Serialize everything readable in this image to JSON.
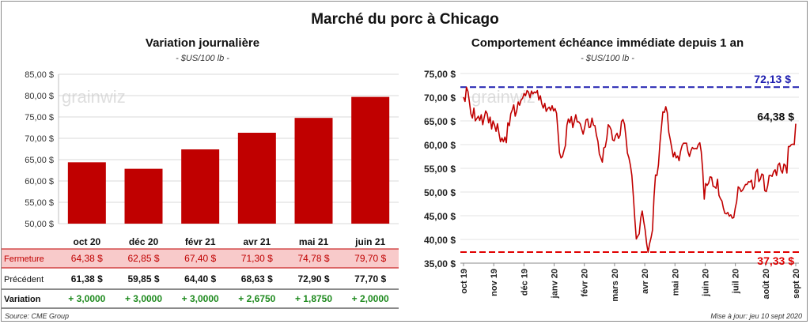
{
  "title": "Marché du porc à Chicago",
  "left": {
    "title": "Variation journalière",
    "subtitle": "- $US/100 lb -",
    "watermark": "grainwiz",
    "chart_data": {
      "type": "bar",
      "categories": [
        "oct 20",
        "déc 20",
        "févr 21",
        "avr 21",
        "mai 21",
        "juin 21"
      ],
      "values": [
        64.38,
        62.85,
        67.4,
        71.3,
        74.78,
        79.7
      ],
      "ylim": [
        50,
        85
      ],
      "yticks": [
        "50,00 $",
        "55,00 $",
        "60,00 $",
        "65,00 $",
        "70,00 $",
        "75,00 $",
        "80,00 $",
        "85,00 $"
      ],
      "bar_color": "#c00000",
      "grid": true
    },
    "table": {
      "rows": [
        {
          "label": "Fermeture",
          "values": [
            "64,38  $",
            "62,85  $",
            "67,40  $",
            "71,30  $",
            "74,78  $",
            "79,70  $"
          ],
          "color": "#c00000",
          "bg": "#f8caca"
        },
        {
          "label": "Précédent",
          "values": [
            "61,38  $",
            "59,85  $",
            "64,40  $",
            "68,63  $",
            "72,90  $",
            "77,70  $"
          ],
          "color": "#111111",
          "bg": "#ffffff"
        },
        {
          "label": "Variation",
          "values": [
            "+ 3,0000",
            "+ 3,0000",
            "+ 3,0000",
            "+ 2,6750",
            "+ 1,8750",
            "+ 2,0000"
          ],
          "color": "#1e8a1e",
          "bg": "#ffffff"
        }
      ]
    }
  },
  "right": {
    "title": "Comportement  échéance immédiate depuis 1 an",
    "subtitle": "- $US/100 lb -",
    "watermark": "grainwiz",
    "chart_data": {
      "type": "line",
      "ylim": [
        35,
        75
      ],
      "yticks": [
        "35,00 $",
        "40,00 $",
        "45,00 $",
        "50,00 $",
        "55,00 $",
        "60,00 $",
        "65,00 $",
        "70,00 $",
        "75,00 $"
      ],
      "xticks": [
        "oct 19",
        "nov 19",
        "déc 19",
        "janv 20",
        "févr 20",
        "mars 20",
        "avr 20",
        "mai 20",
        "juin 20",
        "juil 20",
        "août 20",
        "sept 20"
      ],
      "series_color": "#c00000",
      "max_label": "72,13 $",
      "max_value": 72.13,
      "max_color": "#1f1fb0",
      "min_label": "37,33 $",
      "min_value": 37.33,
      "min_color": "#e00000",
      "last_label": "64,38 $",
      "last_value": 64.38,
      "points": [
        [
          0,
          70.0
        ],
        [
          1,
          69.1
        ],
        [
          2,
          72.1
        ],
        [
          3,
          71.2
        ],
        [
          4,
          68.9
        ],
        [
          5,
          66.5
        ],
        [
          6,
          65.6
        ],
        [
          7,
          67.7
        ],
        [
          8,
          65.0
        ],
        [
          9,
          65.5
        ],
        [
          10,
          66.0
        ],
        [
          11,
          65.1
        ],
        [
          12,
          66.3
        ],
        [
          13,
          64.2
        ],
        [
          14,
          65.7
        ],
        [
          15,
          67.1
        ],
        [
          16,
          66.5
        ],
        [
          17,
          64.6
        ],
        [
          18,
          65.8
        ],
        [
          19,
          63.3
        ],
        [
          20,
          65.0
        ],
        [
          21,
          64.1
        ],
        [
          22,
          62.8
        ],
        [
          23,
          64.4
        ],
        [
          24,
          62.4
        ],
        [
          25,
          60.6
        ],
        [
          26,
          61.4
        ],
        [
          27,
          60.6
        ],
        [
          28,
          61.6
        ],
        [
          29,
          60.4
        ],
        [
          30,
          64.6
        ],
        [
          31,
          64.0
        ],
        [
          32,
          66.5
        ],
        [
          33,
          67.3
        ],
        [
          34,
          68.4
        ],
        [
          35,
          66.0
        ],
        [
          36,
          67.1
        ],
        [
          37,
          69.0
        ],
        [
          38,
          68.3
        ],
        [
          39,
          69.4
        ],
        [
          40,
          69.8
        ],
        [
          41,
          70.8
        ],
        [
          42,
          70.3
        ],
        [
          43,
          71.4
        ],
        [
          44,
          71.1
        ],
        [
          45,
          69.9
        ],
        [
          46,
          71.3
        ],
        [
          47,
          70.7
        ],
        [
          48,
          71.1
        ],
        [
          49,
          70.9
        ],
        [
          50,
          71.4
        ],
        [
          51,
          69.4
        ],
        [
          52,
          70.3
        ],
        [
          53,
          68.6
        ],
        [
          54,
          67.7
        ],
        [
          55,
          68.7
        ],
        [
          56,
          67.0
        ],
        [
          57,
          67.6
        ],
        [
          58,
          67.9
        ],
        [
          59,
          67.2
        ],
        [
          60,
          68.2
        ],
        [
          61,
          67.1
        ],
        [
          62,
          67.6
        ],
        [
          63,
          66.6
        ],
        [
          64,
          62.5
        ],
        [
          65,
          58.3
        ],
        [
          66,
          57.2
        ],
        [
          67,
          57.5
        ],
        [
          68,
          58.7
        ],
        [
          69,
          59.8
        ],
        [
          70,
          64.1
        ],
        [
          71,
          65.4
        ],
        [
          72,
          64.6
        ],
        [
          73,
          65.9
        ],
        [
          74,
          63.6
        ],
        [
          75,
          64.9
        ],
        [
          76,
          66.3
        ],
        [
          77,
          64.8
        ],
        [
          78,
          64.8
        ],
        [
          79,
          64.4
        ],
        [
          80,
          63.3
        ],
        [
          81,
          62.2
        ],
        [
          82,
          63.6
        ],
        [
          83,
          65.2
        ],
        [
          84,
          65.4
        ],
        [
          85,
          63.6
        ],
        [
          86,
          63.7
        ],
        [
          87,
          65.6
        ],
        [
          88,
          64.1
        ],
        [
          89,
          64.0
        ],
        [
          90,
          62.0
        ],
        [
          91,
          60.7
        ],
        [
          92,
          58.0
        ],
        [
          93,
          57.2
        ],
        [
          94,
          56.3
        ],
        [
          95,
          59.3
        ],
        [
          96,
          59.5
        ],
        [
          97,
          61.3
        ],
        [
          98,
          64.2
        ],
        [
          99,
          63.8
        ],
        [
          100,
          63.1
        ],
        [
          101,
          61.0
        ],
        [
          102,
          60.8
        ],
        [
          103,
          61.9
        ],
        [
          104,
          62.4
        ],
        [
          105,
          61.3
        ],
        [
          106,
          62.0
        ],
        [
          107,
          64.9
        ],
        [
          108,
          65.3
        ],
        [
          109,
          64.3
        ],
        [
          110,
          61.6
        ],
        [
          111,
          58.2
        ],
        [
          112,
          57.2
        ],
        [
          113,
          55.7
        ],
        [
          114,
          53.5
        ],
        [
          115,
          49.1
        ],
        [
          116,
          44.4
        ],
        [
          117,
          40.1
        ],
        [
          118,
          40.7
        ],
        [
          119,
          41.2
        ],
        [
          120,
          44.5
        ],
        [
          121,
          46.0
        ],
        [
          122,
          43.9
        ],
        [
          123,
          42.0
        ],
        [
          124,
          39.1
        ],
        [
          125,
          37.3
        ],
        [
          126,
          39.1
        ],
        [
          127,
          40.4
        ],
        [
          128,
          42.0
        ],
        [
          129,
          49.0
        ],
        [
          130,
          53.6
        ],
        [
          131,
          53.5
        ],
        [
          132,
          55.7
        ],
        [
          133,
          60.3
        ],
        [
          134,
          63.5
        ],
        [
          135,
          66.9
        ],
        [
          136,
          66.8
        ],
        [
          137,
          68.0
        ],
        [
          138,
          66.7
        ],
        [
          139,
          62.6
        ],
        [
          140,
          61.1
        ],
        [
          141,
          59.3
        ],
        [
          142,
          57.4
        ],
        [
          143,
          58.4
        ],
        [
          144,
          57.2
        ],
        [
          145,
          57.6
        ],
        [
          146,
          56.6
        ],
        [
          147,
          58.6
        ],
        [
          148,
          59.8
        ],
        [
          149,
          60.3
        ],
        [
          150,
          60.3
        ],
        [
          151,
          60.3
        ],
        [
          152,
          58.5
        ],
        [
          153,
          57.5
        ],
        [
          154,
          58.7
        ],
        [
          155,
          59.4
        ],
        [
          156,
          59.1
        ],
        [
          157,
          59.2
        ],
        [
          158,
          59.1
        ],
        [
          159,
          60.0
        ],
        [
          160,
          60.4
        ],
        [
          161,
          58.5
        ],
        [
          162,
          54.5
        ],
        [
          163,
          48.5
        ],
        [
          164,
          51.8
        ],
        [
          165,
          51.4
        ],
        [
          166,
          51.9
        ],
        [
          167,
          53.2
        ],
        [
          168,
          53.1
        ],
        [
          169,
          51.2
        ],
        [
          170,
          51.1
        ],
        [
          171,
          50.8
        ],
        [
          172,
          52.7
        ],
        [
          173,
          49.3
        ],
        [
          174,
          48.6
        ],
        [
          175,
          48.1
        ],
        [
          176,
          46.6
        ],
        [
          177,
          45.5
        ],
        [
          178,
          45.4
        ],
        [
          179,
          45.7
        ],
        [
          180,
          44.9
        ],
        [
          181,
          45.2
        ],
        [
          182,
          44.5
        ],
        [
          183,
          44.6
        ],
        [
          184,
          46.6
        ],
        [
          185,
          48.0
        ],
        [
          186,
          51.1
        ],
        [
          187,
          50.8
        ],
        [
          188,
          50.1
        ],
        [
          189,
          50.4
        ],
        [
          190,
          51.0
        ],
        [
          191,
          51.6
        ],
        [
          192,
          51.6
        ],
        [
          193,
          52.2
        ],
        [
          194,
          52.1
        ],
        [
          195,
          52.5
        ],
        [
          196,
          50.6
        ],
        [
          197,
          51.1
        ],
        [
          198,
          54.2
        ],
        [
          199,
          54.8
        ],
        [
          200,
          52.2
        ],
        [
          201,
          52.7
        ],
        [
          202,
          53.8
        ],
        [
          203,
          53.6
        ],
        [
          204,
          50.3
        ],
        [
          205,
          50.1
        ],
        [
          206,
          51.3
        ],
        [
          207,
          53.5
        ],
        [
          208,
          53.5
        ],
        [
          209,
          53.3
        ],
        [
          210,
          54.3
        ],
        [
          211,
          54.7
        ],
        [
          212,
          53.5
        ],
        [
          213,
          55.7
        ],
        [
          214,
          56.1
        ],
        [
          215,
          54.6
        ],
        [
          216,
          54.0
        ],
        [
          217,
          55.9
        ],
        [
          218,
          55.6
        ],
        [
          219,
          54.0
        ],
        [
          220,
          59.6
        ],
        [
          221,
          59.6
        ],
        [
          222,
          60.0
        ],
        [
          223,
          60.1
        ],
        [
          224,
          60.0
        ],
        [
          225,
          64.4
        ]
      ]
    }
  },
  "source": "Source: CME Group",
  "updated": "Mise à jour: jeu 10 sept 2020"
}
